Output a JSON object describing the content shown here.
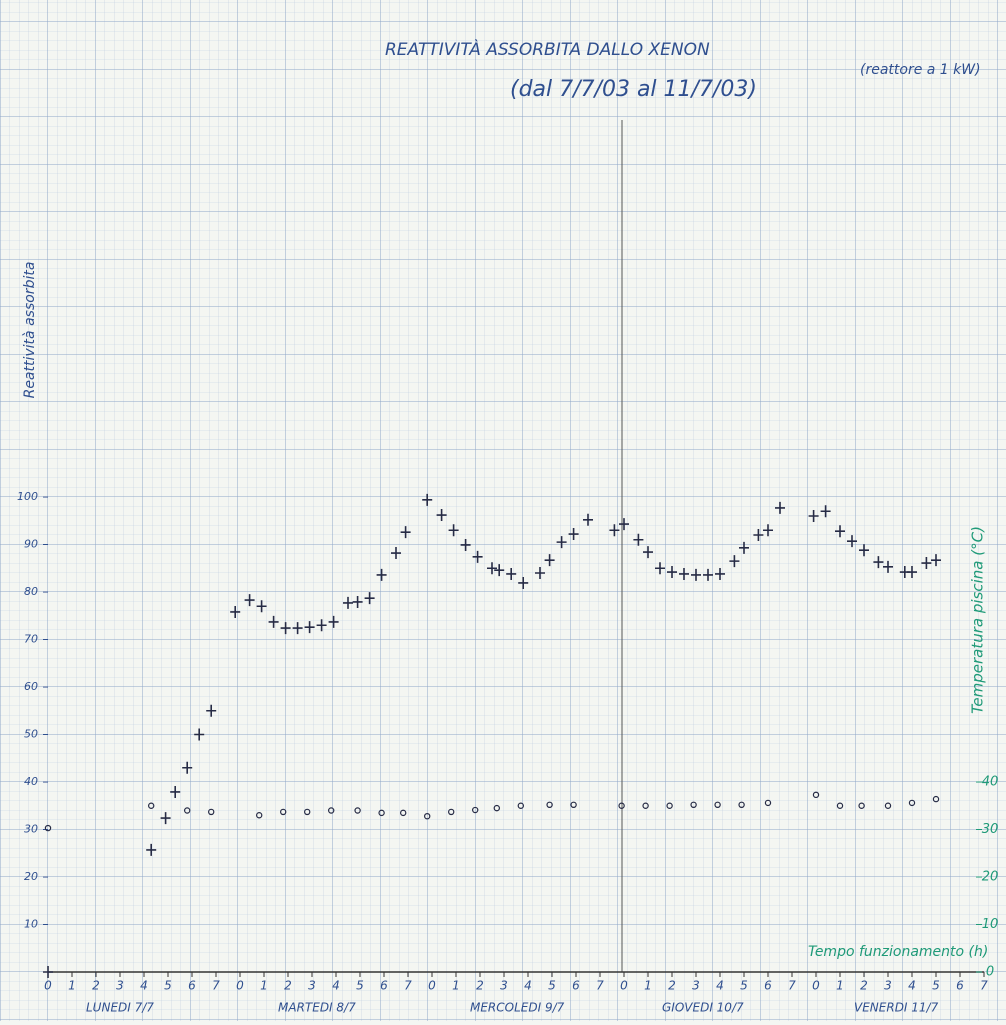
{
  "chart_data": {
    "type": "scatter",
    "title": "REATTIVITÀ ASSORBITA DALLO XENON",
    "subtitle": "(dal 7/7/03 al 11/7/03)",
    "annotation": "(reattore a 1 kW)",
    "ylabel": "Reattività assorbita",
    "y2label": "Temperatura piscina (°C)",
    "xlabel": "Tempo funzionamento (h)",
    "xlim": [
      0,
      39
    ],
    "ylim": [
      0,
      100
    ],
    "y2lim": [
      0,
      100
    ],
    "yticks": [
      10,
      20,
      30,
      40,
      50,
      60,
      70,
      80,
      90,
      100
    ],
    "y2ticks": [
      0,
      10,
      20,
      30,
      40
    ],
    "xticks": [
      {
        "value": 0,
        "label": "0"
      },
      {
        "value": 1,
        "label": "1"
      },
      {
        "value": 2,
        "label": "2"
      },
      {
        "value": 3,
        "label": "3"
      },
      {
        "value": 4,
        "label": "4"
      },
      {
        "value": 5,
        "label": "5"
      },
      {
        "value": 6,
        "label": "6"
      },
      {
        "value": 7,
        "label": "7"
      },
      {
        "value": 8,
        "label": "0"
      },
      {
        "value": 9,
        "label": "1"
      },
      {
        "value": 10,
        "label": "2"
      },
      {
        "value": 11,
        "label": "3"
      },
      {
        "value": 12,
        "label": "4"
      },
      {
        "value": 13,
        "label": "5"
      },
      {
        "value": 14,
        "label": "6"
      },
      {
        "value": 15,
        "label": "7"
      },
      {
        "value": 16,
        "label": "0"
      },
      {
        "value": 17,
        "label": "1"
      },
      {
        "value": 18,
        "label": "2"
      },
      {
        "value": 19,
        "label": "3"
      },
      {
        "value": 20,
        "label": "4"
      },
      {
        "value": 21,
        "label": "5"
      },
      {
        "value": 22,
        "label": "6"
      },
      {
        "value": 23,
        "label": "7"
      },
      {
        "value": 24,
        "label": "0"
      },
      {
        "value": 25,
        "label": "1"
      },
      {
        "value": 26,
        "label": "2"
      },
      {
        "value": 27,
        "label": "3"
      },
      {
        "value": 28,
        "label": "4"
      },
      {
        "value": 29,
        "label": "5"
      },
      {
        "value": 30,
        "label": "6"
      },
      {
        "value": 31,
        "label": "7"
      },
      {
        "value": 32,
        "label": "0"
      },
      {
        "value": 33,
        "label": "1"
      },
      {
        "value": 34,
        "label": "2"
      },
      {
        "value": 35,
        "label": "3"
      },
      {
        "value": 36,
        "label": "4"
      },
      {
        "value": 37,
        "label": "5"
      },
      {
        "value": 38,
        "label": "6"
      },
      {
        "value": 39,
        "label": "7"
      }
    ],
    "days": [
      {
        "value": 0,
        "label": "LUNEDI 7/7"
      },
      {
        "value": 8,
        "label": "MARTEDI 8/7"
      },
      {
        "value": 16,
        "label": "MERCOLEDI 9/7"
      },
      {
        "value": 24,
        "label": "GIOVEDI 10/7"
      },
      {
        "value": 32,
        "label": "VENERDI 11/7"
      }
    ],
    "series": [
      {
        "marker": "cross",
        "color": "#262b45",
        "x": [
          0,
          4.3,
          4.9,
          5.3,
          5.8,
          6.3,
          6.8,
          7.8,
          8.4,
          8.9,
          9.4,
          9.9,
          10.4,
          10.9,
          11.4,
          11.9,
          12.5,
          12.9,
          13.4,
          13.9,
          14.5,
          14.9,
          15.8,
          16.4,
          16.9,
          17.4,
          17.9,
          18.5,
          18.8,
          19.3,
          19.8,
          20.5,
          20.9,
          21.4,
          21.9,
          22.5,
          23.6,
          24.0,
          24.6,
          25.0,
          25.5,
          26.0,
          26.5,
          27.0,
          27.5,
          28.0,
          28.6,
          29.0,
          29.6,
          30.0,
          30.5,
          31.9,
          32.4,
          33.0,
          33.5,
          34.0,
          34.6,
          35.0,
          35.7,
          36.0,
          36.6,
          37.0
        ],
        "values": [
          0,
          25.7,
          32.4,
          37.9,
          43,
          50,
          55,
          75.8,
          78.3,
          77,
          73.7,
          72.4,
          72.4,
          72.6,
          73,
          73.7,
          77.7,
          77.9,
          78.7,
          83.6,
          88.2,
          92.6,
          99.4,
          96.2,
          93,
          89.9,
          87.4,
          85,
          84.6,
          83.8,
          81.9,
          84,
          86.7,
          90.5,
          92.2,
          95.2,
          93,
          94.3,
          91,
          88.4,
          85,
          84.2,
          83.8,
          83.6,
          83.6,
          83.8,
          86.5,
          89.3,
          92,
          93,
          97.7,
          96,
          97,
          92.8,
          90.7,
          88.8,
          86.3,
          85.3,
          84.2,
          84.2,
          86.1,
          86.7
        ]
      },
      {
        "marker": "circle",
        "color": "#262b45",
        "axis": "y2",
        "x": [
          0,
          4.3,
          5.8,
          6.8,
          8.8,
          9.8,
          10.8,
          11.8,
          12.9,
          13.9,
          14.8,
          15.8,
          16.8,
          17.8,
          18.7,
          19.7,
          20.9,
          21.9,
          23.9,
          24.9,
          25.9,
          26.9,
          27.9,
          28.9,
          30.0,
          32.0,
          33.0,
          33.9,
          35.0,
          36.0,
          37.0
        ],
        "values": [
          30.3,
          35,
          34,
          33.7,
          33,
          33.7,
          33.7,
          34,
          34,
          33.5,
          33.5,
          32.8,
          33.7,
          34.1,
          34.5,
          35,
          35.2,
          35.2,
          35,
          35,
          35,
          35.2,
          35.2,
          35.2,
          35.6,
          37.3,
          35,
          35,
          35,
          35.6,
          36.4
        ]
      }
    ]
  }
}
